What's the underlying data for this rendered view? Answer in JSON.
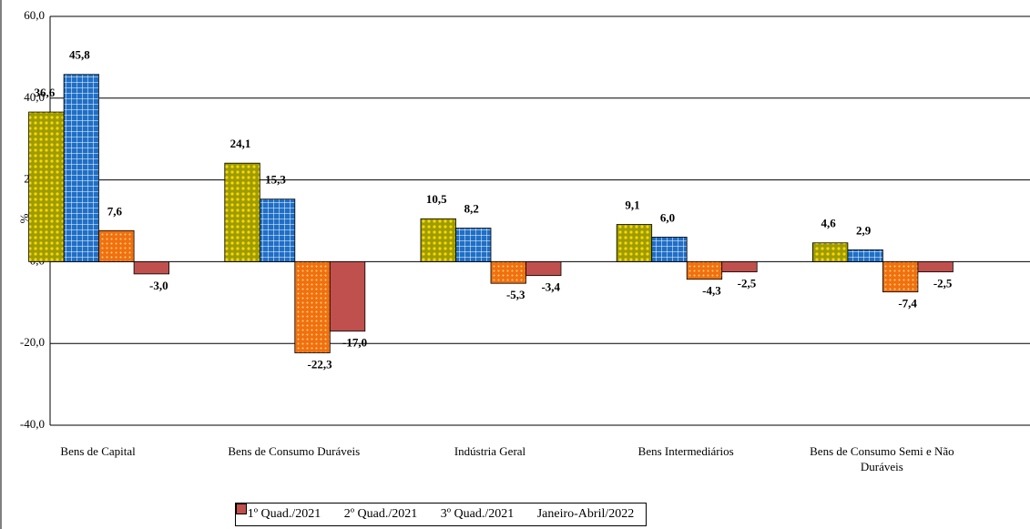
{
  "chart_data": {
    "type": "bar",
    "y_label": "%",
    "categories": [
      "Bens de Capital",
      "Bens de Consumo Duráveis",
      "Indústria Geral",
      "Bens Intermediários",
      "Bens de Consumo Semi e Não Duráveis"
    ],
    "series": [
      {
        "name": "1º Quad./2021",
        "color": "#9c9c00",
        "values": [
          36.6,
          24.1,
          10.5,
          9.1,
          4.6
        ],
        "value_labels": [
          "36,6",
          "24,1",
          "10,5",
          "9,1",
          "4,6"
        ]
      },
      {
        "name": "2º Quad./2021",
        "color": "#1f6fc6",
        "values": [
          45.8,
          15.3,
          8.2,
          6.0,
          2.9
        ],
        "value_labels": [
          "45,8",
          "15,3",
          "8,2",
          "6,0",
          "2,9"
        ]
      },
      {
        "name": "3º Quad./2021",
        "color": "#f07010",
        "values": [
          7.6,
          -22.3,
          -5.3,
          -4.3,
          -7.4
        ],
        "value_labels": [
          "7,6",
          "-22,3",
          "-5,3",
          "-4,3",
          "-7,4"
        ]
      },
      {
        "name": "Janeiro-Abril/2022",
        "color": "#c0504d",
        "values": [
          -3.0,
          -17.0,
          -3.4,
          -2.5,
          -2.5
        ],
        "value_labels": [
          "-3,0",
          "-17,0",
          "-3,4",
          "-2,5",
          "-2,5"
        ]
      }
    ],
    "ylim": [
      -40,
      60
    ],
    "yticks": [
      {
        "value": -40,
        "label": "-40,0"
      },
      {
        "value": -20,
        "label": "-20,0"
      },
      {
        "value": 0,
        "label": "0,0"
      },
      {
        "value": 20,
        "label": "20,0"
      },
      {
        "value": 40,
        "label": "40,0"
      },
      {
        "value": 60,
        "label": "60,0"
      }
    ],
    "grid": true
  }
}
